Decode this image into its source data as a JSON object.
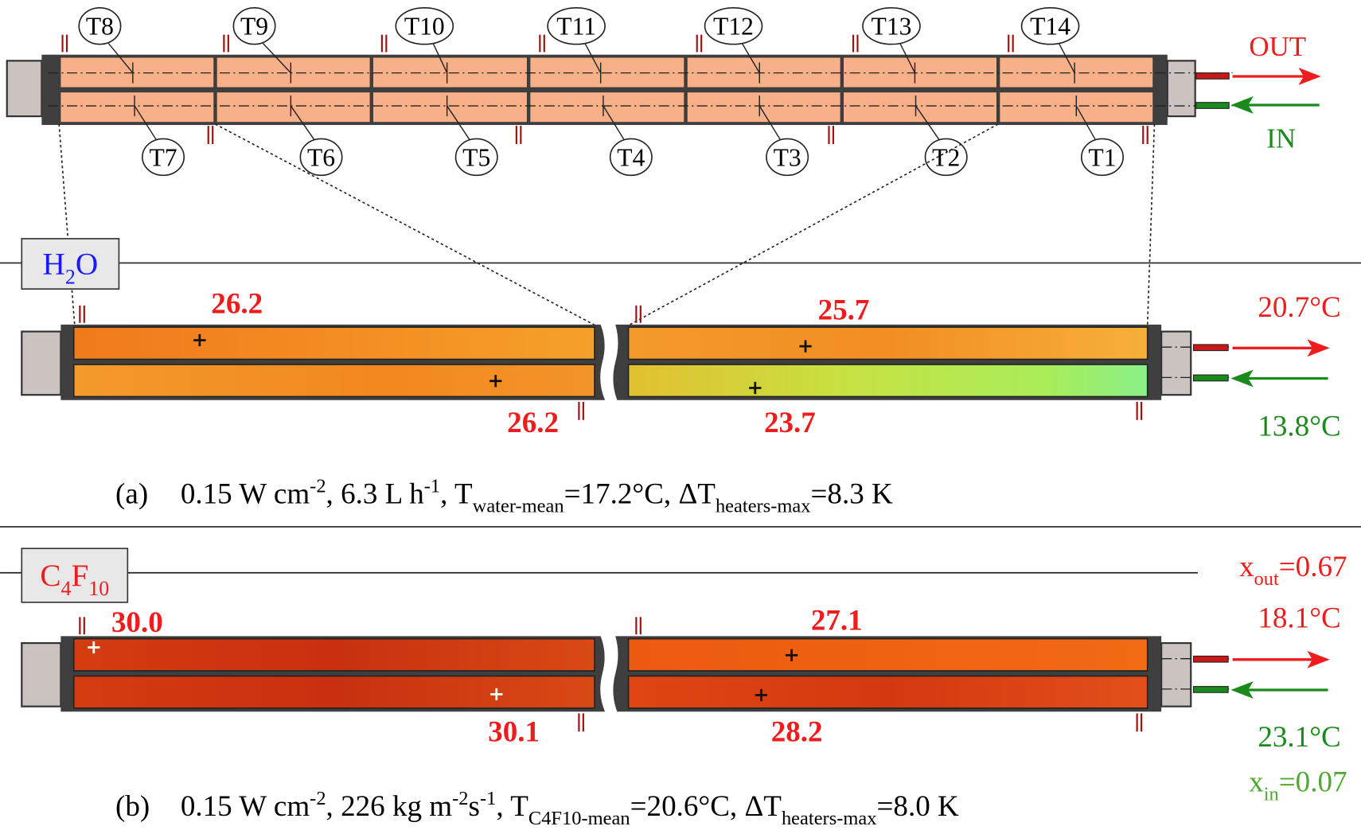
{
  "schematic": {
    "sensors_top": [
      "T8",
      "T9",
      "T10",
      "T11",
      "T12",
      "T13",
      "T14"
    ],
    "sensors_bottom": [
      "T7",
      "T6",
      "T5",
      "T4",
      "T3",
      "T2",
      "T1"
    ],
    "outlet_label": "OUT",
    "inlet_label": "IN"
  },
  "panels": [
    {
      "fluid": [
        {
          "text": "H"
        },
        {
          "text": "2",
          "kind": "sub"
        },
        {
          "text": "O"
        }
      ],
      "max_temps": [
        "26.2",
        "26.2",
        "25.7",
        "23.7"
      ],
      "outlet": "20.7°C",
      "inlet": "13.8°C",
      "caption_tag": "(a)",
      "caption": [
        {
          "text": "0.15 W cm"
        },
        {
          "text": "-2",
          "kind": "sup"
        },
        {
          "text": ", 6.3 L h"
        },
        {
          "text": "-1",
          "kind": "sup"
        },
        {
          "text": ", T"
        },
        {
          "text": "water-mean",
          "kind": "sub"
        },
        {
          "text": "=17.2°C,  ΔT"
        },
        {
          "text": "heaters-max",
          "kind": "sub"
        },
        {
          "text": "=8.3 K"
        }
      ]
    },
    {
      "fluid": [
        {
          "text": "C"
        },
        {
          "text": "4",
          "kind": "sub"
        },
        {
          "text": "F"
        },
        {
          "text": "10",
          "kind": "sub"
        }
      ],
      "quality_out": [
        {
          "text": "x"
        },
        {
          "text": "out",
          "kind": "sub"
        },
        {
          "text": "=0.67"
        }
      ],
      "max_temps": [
        "30.0",
        "30.1",
        "27.1",
        "28.2"
      ],
      "outlet": "18.1°C",
      "inlet": "23.1°C",
      "quality_in": [
        {
          "text": "x"
        },
        {
          "text": "in",
          "kind": "sub"
        },
        {
          "text": "=0.07"
        }
      ],
      "caption_tag": "(b)",
      "caption": [
        {
          "text": "0.15 W cm"
        },
        {
          "text": "-2",
          "kind": "sup"
        },
        {
          "text": ", 226 kg m"
        },
        {
          "text": "-2",
          "kind": "sup"
        },
        {
          "text": "s"
        },
        {
          "text": "-1",
          "kind": "sup"
        },
        {
          "text": ", T"
        },
        {
          "text": "C4F10-mean",
          "kind": "sub"
        },
        {
          "text": "=20.6°C,    ΔT"
        },
        {
          "text": "heaters-max",
          "kind": "sub"
        },
        {
          "text": "=8.0 K"
        }
      ]
    }
  ]
}
